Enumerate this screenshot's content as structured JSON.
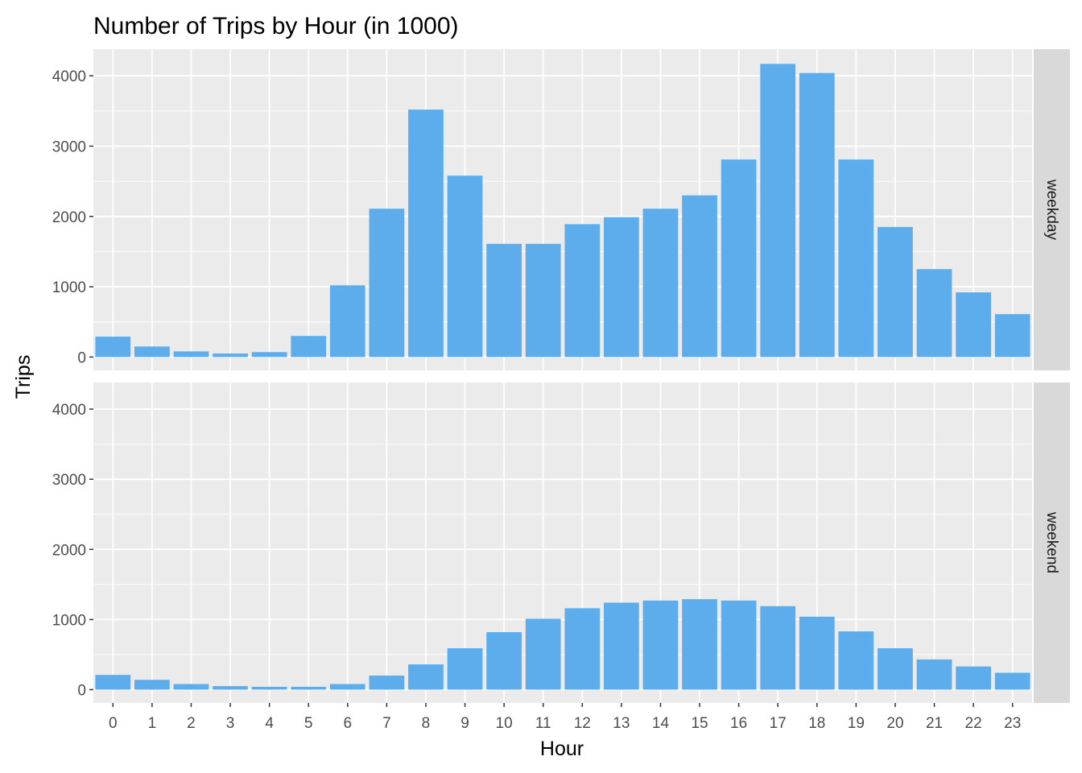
{
  "chart_data": {
    "type": "bar",
    "title": "Number of Trips by Hour (in 1000)",
    "xlabel": "Hour",
    "ylabel": "Trips",
    "categories": [
      "0",
      "1",
      "2",
      "3",
      "4",
      "5",
      "6",
      "7",
      "8",
      "9",
      "10",
      "11",
      "12",
      "13",
      "14",
      "15",
      "16",
      "17",
      "18",
      "19",
      "20",
      "21",
      "22",
      "23"
    ],
    "ylim": [
      -190,
      4380
    ],
    "yticks": [
      0,
      1000,
      2000,
      3000,
      4000
    ],
    "grid": true,
    "bar_color": "#5DADEC",
    "panel_background": "#EBEBEB",
    "strip_background": "#D9D9D9",
    "facets": [
      {
        "name": "weekday",
        "values": [
          290,
          150,
          80,
          50,
          70,
          300,
          1020,
          2110,
          3520,
          2580,
          1610,
          1610,
          1890,
          1990,
          2110,
          2300,
          2810,
          4170,
          4040,
          2810,
          1850,
          1250,
          920,
          610
        ]
      },
      {
        "name": "weekend",
        "values": [
          210,
          140,
          80,
          50,
          40,
          40,
          80,
          200,
          360,
          590,
          820,
          1010,
          1160,
          1240,
          1270,
          1290,
          1270,
          1190,
          1040,
          830,
          590,
          430,
          330,
          240
        ]
      }
    ]
  }
}
